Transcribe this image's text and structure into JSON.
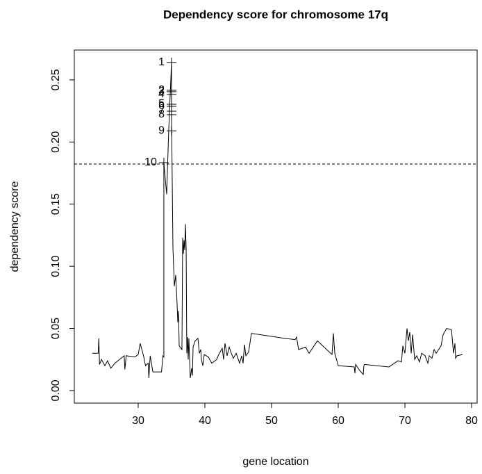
{
  "chart_data": {
    "type": "line",
    "title": "Dependency score for chromosome 17q",
    "xlabel": "gene location",
    "ylabel": "dependency score",
    "xlim": [
      20.42,
      80.83
    ],
    "ylim": [
      -0.0101,
      0.274
    ],
    "xticks": [
      30,
      40,
      50,
      60,
      70,
      80
    ],
    "yticks": [
      {
        "value": 0,
        "label": "0.00"
      },
      {
        "value": 0.05,
        "label": "0.05"
      },
      {
        "value": 0.1,
        "label": "0.10"
      },
      {
        "value": 0.15,
        "label": "0.15"
      },
      {
        "value": 0.2,
        "label": "0.20"
      },
      {
        "value": 0.25,
        "label": "0.25"
      }
    ],
    "threshold": 0.1823,
    "series": [
      {
        "color": "#000000",
        "x": [
          23.1,
          24.0,
          24.1,
          24.2,
          24.5,
          25.0,
          25.4,
          25.9,
          26.5,
          27.9,
          28.0,
          28.2,
          29.5,
          30.0,
          30.3,
          30.8,
          31.1,
          31.5,
          31.6,
          31.8,
          32.2,
          33.5,
          33.7,
          33.85,
          33.85,
          34.27,
          34.58,
          35.0,
          35.0,
          35.21,
          35.42,
          35.63,
          35.83,
          35.94,
          36.04,
          36.15,
          36.56,
          36.67,
          36.77,
          36.88,
          36.98,
          37.08,
          37.19,
          37.29,
          37.4,
          37.5,
          37.6,
          37.81,
          38.02,
          38.13,
          38.23,
          38.54,
          38.96,
          39.17,
          39.38,
          39.48,
          39.69,
          39.9,
          40.52,
          41.04,
          41.77,
          42.08,
          42.6,
          42.81,
          43.02,
          43.33,
          43.65,
          43.96,
          44.27,
          44.69,
          45.21,
          45.52,
          45.73,
          45.94,
          46.15,
          46.56,
          46.98,
          51.98,
          53.54,
          53.75,
          54.06,
          55.1,
          55.63,
          56.88,
          59.06,
          59.27,
          59.48,
          60.0,
          62.4,
          62.5,
          62.6,
          63.23,
          63.75,
          63.85,
          63.96,
          67.6,
          68.96,
          69.48,
          69.69,
          70.0,
          70.31,
          70.52,
          70.73,
          70.94,
          71.15,
          71.46,
          71.77,
          72.19,
          72.5,
          73.02,
          73.44,
          73.65,
          74.06,
          74.38,
          74.69,
          75.42,
          75.73,
          76.25,
          76.98,
          77.29,
          77.5,
          77.6,
          77.81,
          78.65
        ],
        "values": [
          0.03,
          0.03,
          0.042,
          0.021,
          0.025,
          0.02,
          0.024,
          0.018,
          0.022,
          0.028,
          0.017,
          0.028,
          0.027,
          0.029,
          0.038,
          0.028,
          0.02,
          0.022,
          0.01,
          0.028,
          0.015,
          0.015,
          0.028,
          0.027,
          0.183,
          0.158,
          0.21,
          0.264,
          0.222,
          0.115,
          0.084,
          0.093,
          0.07,
          0.055,
          0.064,
          0.036,
          0.033,
          0.123,
          0.11,
          0.121,
          0.113,
          0.134,
          0.115,
          0.03,
          0.043,
          0.025,
          0.042,
          0.01,
          0.018,
          0.012,
          0.035,
          0.04,
          0.042,
          0.03,
          0.033,
          0.025,
          0.02,
          0.029,
          0.027,
          0.022,
          0.025,
          0.029,
          0.034,
          0.025,
          0.038,
          0.028,
          0.035,
          0.03,
          0.026,
          0.03,
          0.022,
          0.028,
          0.022,
          0.037,
          0.028,
          0.031,
          0.046,
          0.042,
          0.041,
          0.043,
          0.033,
          0.035,
          0.03,
          0.04,
          0.029,
          0.046,
          0.03,
          0.02,
          0.019,
          0.014,
          0.021,
          0.016,
          0.013,
          0.02,
          0.021,
          0.019,
          0.024,
          0.023,
          0.036,
          0.03,
          0.05,
          0.04,
          0.047,
          0.03,
          0.045,
          0.025,
          0.028,
          0.023,
          0.03,
          0.028,
          0.022,
          0.028,
          0.026,
          0.033,
          0.03,
          0.036,
          0.045,
          0.05,
          0.049,
          0.03,
          0.038,
          0.026,
          0.028,
          0.029
        ]
      }
    ],
    "top_genes": {
      "labels": [
        "1",
        "2",
        "3",
        "4",
        "5",
        "6",
        "7",
        "8",
        "9",
        "10"
      ],
      "x": [
        35.0,
        35.0,
        35.0,
        35.0,
        35.0,
        35.0,
        35.0,
        35.0,
        35.0,
        33.85
      ],
      "y": [
        0.264,
        0.2416,
        0.2405,
        0.2383,
        0.2304,
        0.2287,
        0.2248,
        0.222,
        0.209,
        0.1834
      ]
    }
  }
}
